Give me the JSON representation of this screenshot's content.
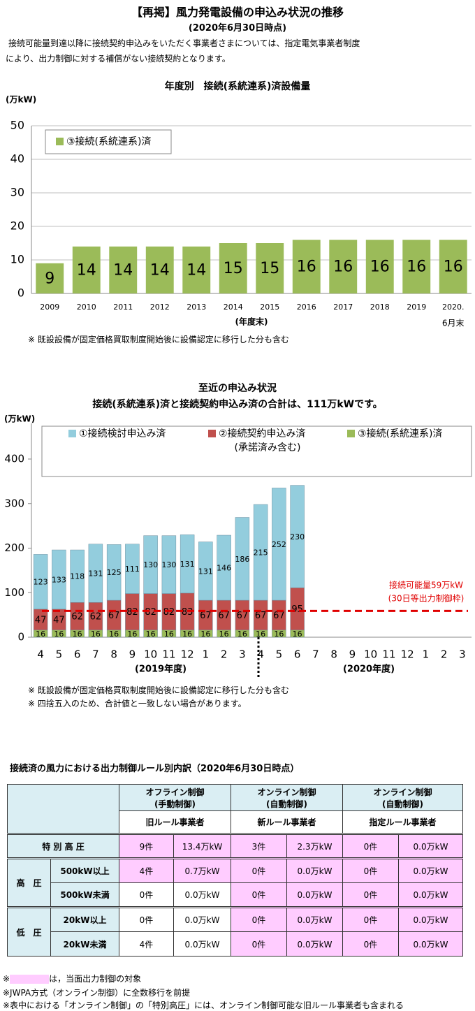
{
  "header": {
    "title": "【再掲】風力発電設備の申込み状況の推移",
    "subtitle": "(2020年6月30日時点)",
    "intro": [
      "接続可能量到達以降に接続契約申込みをいただく事業者さまについては、指定電気事業者制度",
      "により、出力制御に対する補償がない接続契約となります。"
    ]
  },
  "chart_data": [
    {
      "type": "bar",
      "title": "年度別　接続(系統連系)済設備量",
      "y_label": "(万kW)",
      "x_label": "(年度末)",
      "x_note": "6月末",
      "categories": [
        "2009",
        "2010",
        "2011",
        "2012",
        "2013",
        "2014",
        "2015",
        "2016",
        "2017",
        "2018",
        "2019",
        "2020."
      ],
      "series": [
        {
          "name": "③接続(系統連系)済",
          "color": "#9bbb59",
          "values": [
            9,
            14,
            14,
            14,
            14,
            15,
            15,
            16,
            16,
            16,
            16,
            16
          ]
        }
      ],
      "ylim": [
        0,
        50
      ],
      "yticks": [
        0,
        10,
        20,
        30,
        40,
        50
      ],
      "grid": true,
      "legend": "top-left",
      "notes": [
        "※ 既設設備が固定価格買取制度開始後に設備認定に移行した分も含む"
      ]
    },
    {
      "type": "bar",
      "stacked": true,
      "title": "至近の申込み状況",
      "subtitle": "接続(系統連系)済と接続契約申込み済の合計は、111万kWです。",
      "y_label": "(万kW)",
      "categories": [
        "4",
        "5",
        "6",
        "7",
        "8",
        "9",
        "10",
        "11",
        "12",
        "1",
        "2",
        "3",
        "4",
        "5",
        "6",
        "7",
        "8",
        "9",
        "10",
        "11",
        "12",
        "1",
        "2",
        "3"
      ],
      "group_labels": [
        "(2019年度)",
        "(2020年度)"
      ],
      "series": [
        {
          "name": "①接続検討申込み済",
          "color": "#93cddd",
          "values": [
            123,
            133,
            118,
            131,
            125,
            111,
            130,
            130,
            131,
            131,
            146,
            186,
            215,
            252,
            230,
            null,
            null,
            null,
            null,
            null,
            null,
            null,
            null,
            null
          ]
        },
        {
          "name": "②接続契約申込み済",
          "legend_note": "(承諾済み含む)",
          "color": "#c0504d",
          "values": [
            47,
            47,
            62,
            62,
            67,
            82,
            82,
            82,
            83,
            67,
            67,
            67,
            67,
            67,
            95,
            null,
            null,
            null,
            null,
            null,
            null,
            null,
            null,
            null
          ]
        },
        {
          "name": "③接続(系統連系)済",
          "color": "#9bbb59",
          "values": [
            16,
            16,
            16,
            16,
            16,
            16,
            16,
            16,
            16,
            16,
            16,
            16,
            16,
            16,
            16,
            null,
            null,
            null,
            null,
            null,
            null,
            null,
            null,
            null
          ]
        }
      ],
      "reference_line": {
        "value": 59,
        "label": "接続可能量59万kW",
        "note": "(30日等出力制御枠)",
        "color": "#e00000"
      },
      "ylim": [
        0,
        480
      ],
      "yticks": [
        0,
        100,
        200,
        300,
        400
      ],
      "grid": false,
      "legend": "top",
      "notes": [
        "※ 既設設備が固定価格買取制度開始後に設備認定に移行した分も含む",
        "※ 四捨五入のため、合計値と一致しない場合があります。"
      ]
    }
  ],
  "table": {
    "title": "接続済の風力における出力制御ルール別内訳（2020年6月30日時点）",
    "groups": [
      "オフライン制御\n(手動制御)",
      "オンライン制御\n(自動制御)",
      "オンライン制御\n(自動制御)"
    ],
    "rule_types": [
      "旧ルール事業者",
      "新ルール事業者",
      "指定ルール事業者"
    ],
    "rows": [
      {
        "label": "特 別 高 圧",
        "sub": [
          {
            "cells": [
              "9件",
              "13.4万kW",
              "3件",
              "2.3万kW",
              "0件",
              "0.0万kW"
            ]
          }
        ]
      },
      {
        "label": "高　圧",
        "sub": [
          {
            "label": "500kW以上",
            "cells": [
              "4件",
              "0.7万kW",
              "0件",
              "0.0万kW",
              "0件",
              "0.0万kW"
            ]
          },
          {
            "label": "500kW未満",
            "cells": [
              "0件",
              "0.0万kW",
              "0件",
              "0.0万kW",
              "0件",
              "0.0万kW"
            ]
          }
        ]
      },
      {
        "label": "低　圧",
        "sub": [
          {
            "label": "20kW以上",
            "cells": [
              "0件",
              "0.0万kW",
              "0件",
              "0.0万kW",
              "0件",
              "0.0万kW"
            ]
          },
          {
            "label": "20kW未満",
            "cells": [
              "4件",
              "0.0万kW",
              "0件",
              "0.0万kW",
              "0件",
              "0.0万kW"
            ]
          }
        ]
      }
    ]
  },
  "footnotes": [
    {
      "mark": "※",
      "text": "は，当面出力制御の対象"
    },
    {
      "text": "※JWPA方式（オンライン制御）に全数移行を前提"
    },
    {
      "text": "※表中における「オンライン制御」の「特別高圧」には、オンライン制御可能な旧ルール事業者も含まれる"
    }
  ]
}
